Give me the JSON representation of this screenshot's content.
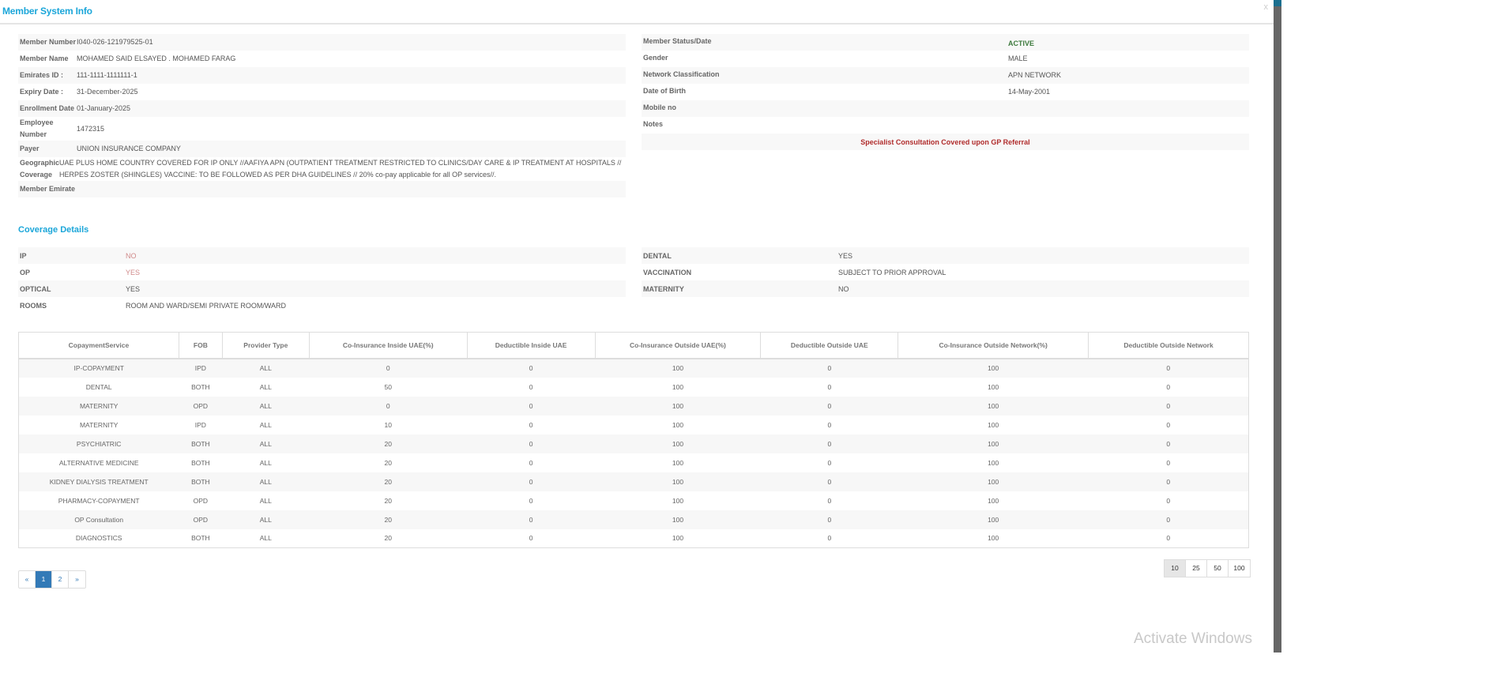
{
  "modal": {
    "title": "Member System Info",
    "close_label": "x"
  },
  "member_info": {
    "left": [
      {
        "label": "Member Number",
        "value": "I040-026-121979525-01"
      },
      {
        "label": "Member Name",
        "value": "MOHAMED SAID ELSAYED . MOHAMED FARAG"
      },
      {
        "label": "Emirates ID :",
        "value": "111-1111-1111111-1"
      },
      {
        "label": "Expiry Date :",
        "value": "31-December-2025"
      },
      {
        "label": "Enrollment Date",
        "value": "01-January-2025"
      },
      {
        "label": "Employee Number",
        "value": "1472315"
      },
      {
        "label": "Payer",
        "value": "UNION INSURANCE COMPANY"
      },
      {
        "label": "Geographic Coverage",
        "value": "UAE PLUS HOME COUNTRY COVERED FOR IP ONLY //AAFIYA APN (OUTPATIENT TREATMENT RESTRICTED TO CLINICS/DAY CARE & IP TREATMENT AT HOSPITALS // HERPES ZOSTER (SHINGLES) VACCINE: TO BE FOLLOWED AS PER DHA GUIDELINES // 20% co-pay applicable for all OP services//."
      },
      {
        "label": "Member Emirate",
        "value": ""
      }
    ],
    "right": [
      {
        "label": "Member Status/Date",
        "value": "ACTIVE"
      },
      {
        "label": "Gender",
        "value": "MALE"
      },
      {
        "label": "Network Classification",
        "value": "APN NETWORK"
      },
      {
        "label": "Date of Birth",
        "value": "14-May-2001"
      },
      {
        "label": "Mobile no",
        "value": ""
      },
      {
        "label": "Notes",
        "value": ""
      }
    ],
    "note": "Specialist Consultation Covered upon GP Referral"
  },
  "coverage": {
    "title": "Coverage Details",
    "left": [
      {
        "label": "IP",
        "value": "NO"
      },
      {
        "label": "OP",
        "value": "YES"
      },
      {
        "label": "OPTICAL",
        "value": "YES"
      },
      {
        "label": "ROOMS",
        "value": "ROOM AND WARD/SEMI PRIVATE ROOM/WARD"
      }
    ],
    "right": [
      {
        "label": "DENTAL",
        "value": "YES"
      },
      {
        "label": "VACCINATION",
        "value": "SUBJECT TO PRIOR APPROVAL"
      },
      {
        "label": "MATERNITY",
        "value": "NO"
      }
    ]
  },
  "table": {
    "headers": [
      "CopaymentService",
      "FOB",
      "Provider Type",
      "Co-Insurance Inside UAE(%)",
      "Deductible Inside UAE",
      "Co-Insurance Outside UAE(%)",
      "Deductible Outside UAE",
      "Co-Insurance Outside Network(%)",
      "Deductible Outside Network"
    ],
    "rows": [
      [
        "IP-COPAYMENT",
        "IPD",
        "ALL",
        "0",
        "0",
        "100",
        "0",
        "100",
        "0"
      ],
      [
        "DENTAL",
        "BOTH",
        "ALL",
        "50",
        "0",
        "100",
        "0",
        "100",
        "0"
      ],
      [
        "MATERNITY",
        "OPD",
        "ALL",
        "0",
        "0",
        "100",
        "0",
        "100",
        "0"
      ],
      [
        "MATERNITY",
        "IPD",
        "ALL",
        "10",
        "0",
        "100",
        "0",
        "100",
        "0"
      ],
      [
        "PSYCHIATRIC",
        "BOTH",
        "ALL",
        "20",
        "0",
        "100",
        "0",
        "100",
        "0"
      ],
      [
        "ALTERNATIVE MEDICINE",
        "BOTH",
        "ALL",
        "20",
        "0",
        "100",
        "0",
        "100",
        "0"
      ],
      [
        "KIDNEY DIALYSIS TREATMENT",
        "BOTH",
        "ALL",
        "20",
        "0",
        "100",
        "0",
        "100",
        "0"
      ],
      [
        "PHARMACY-COPAYMENT",
        "OPD",
        "ALL",
        "20",
        "0",
        "100",
        "0",
        "100",
        "0"
      ],
      [
        "OP Consultation",
        "OPD",
        "ALL",
        "20",
        "0",
        "100",
        "0",
        "100",
        "0"
      ],
      [
        "DIAGNOSTICS",
        "BOTH",
        "ALL",
        "20",
        "0",
        "100",
        "0",
        "100",
        "0"
      ]
    ]
  },
  "pagination": {
    "prev": "«",
    "pages": [
      "1",
      "2"
    ],
    "current": "1",
    "next": "»"
  },
  "page_size": {
    "options": [
      "10",
      "25",
      "50",
      "100"
    ],
    "selected": "10"
  },
  "watermark": "Activate Windows",
  "colors": {
    "accent": "#1ba6d9",
    "active": "#3d7a3d",
    "note": "#b02b2b",
    "pager": "#337ab7"
  }
}
